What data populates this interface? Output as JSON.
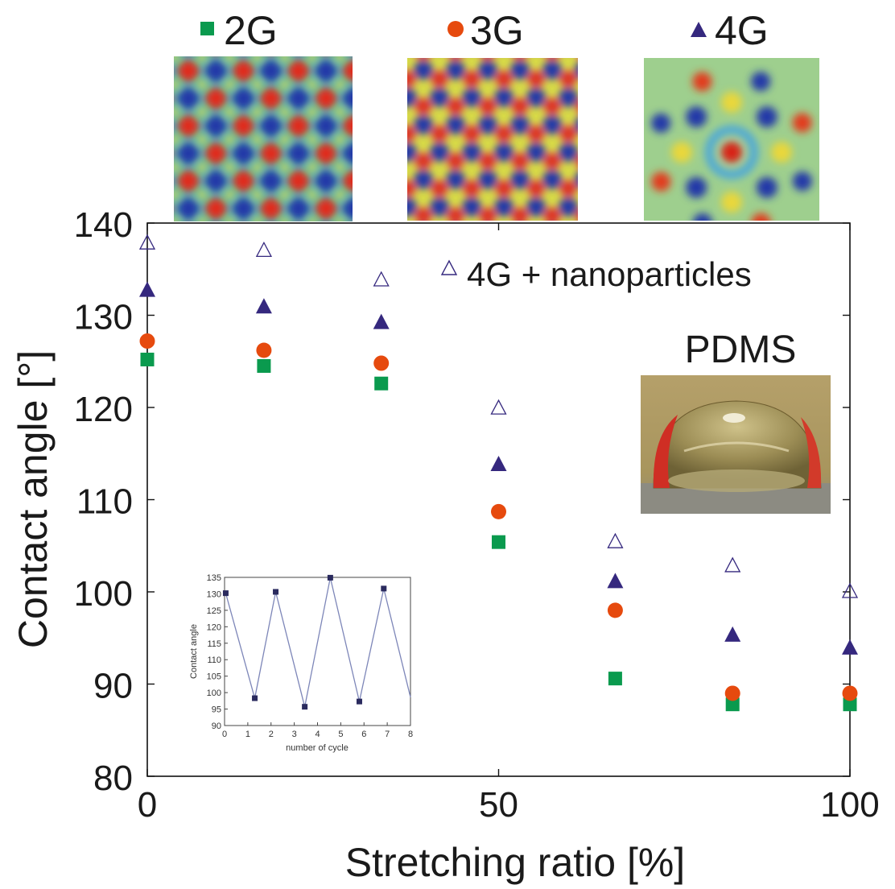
{
  "top_legend": [
    {
      "label": "2G",
      "marker": "square",
      "color": "#0a9a4e"
    },
    {
      "label": "3G",
      "marker": "circle",
      "color": "#e64a0e"
    },
    {
      "label": "4G",
      "marker": "triangle",
      "color": "#35287e"
    }
  ],
  "pattern_images": [
    {
      "name": "pattern-2g",
      "kind": "square-lattice"
    },
    {
      "name": "pattern-3g",
      "kind": "hexagonal-lattice"
    },
    {
      "name": "pattern-4g",
      "kind": "quasicrystal"
    }
  ],
  "photo": {
    "label": "PDMS",
    "subject": "water-droplet-photo"
  },
  "colors": {
    "square": "#0a9a4e",
    "circle": "#e64a0e",
    "triangle": "#35287e",
    "open_triangle": "#35287e",
    "inset_line": "#7d86b8",
    "inset_marker": "#2a2a5e"
  },
  "chart_data": [
    {
      "type": "scatter",
      "xlabel": "Stretching ratio [%]",
      "ylabel": "Contact angle [°]",
      "xlim": [
        0,
        100
      ],
      "ylim": [
        80,
        140
      ],
      "xticks": [
        0,
        50,
        100
      ],
      "yticks": [
        80,
        90,
        100,
        110,
        120,
        130,
        140
      ],
      "grid": false,
      "x": [
        0,
        16.6,
        33.3,
        50,
        66.6,
        83.3,
        100
      ],
      "series": [
        {
          "name": "2G",
          "marker": "square",
          "values": [
            125.2,
            124.5,
            122.6,
            105.4,
            90.6,
            87.8,
            87.8
          ]
        },
        {
          "name": "3G",
          "marker": "circle",
          "values": [
            127.2,
            126.2,
            124.8,
            108.7,
            98.0,
            89.0,
            89.0
          ]
        },
        {
          "name": "4G",
          "marker": "triangle",
          "values": [
            132.7,
            130.9,
            129.2,
            113.8,
            101.1,
            95.3,
            93.9
          ]
        },
        {
          "name": "4G + nanoparticles",
          "marker": "open-triangle",
          "values": [
            137.8,
            137.0,
            133.8,
            119.9,
            105.4,
            102.8,
            100.0
          ]
        }
      ],
      "legend_label": "4G + nanoparticles",
      "legend_position": "top-right"
    },
    {
      "type": "line",
      "inset": true,
      "xlabel": "number of cycle",
      "ylabel": "Contact angle",
      "xlim": [
        0,
        8
      ],
      "ylim": [
        90,
        135
      ],
      "xticks": [
        0,
        1,
        2,
        3,
        4,
        5,
        6,
        7,
        8
      ],
      "yticks": [
        90,
        95,
        100,
        105,
        110,
        115,
        120,
        125,
        130,
        135
      ],
      "x": [
        0.05,
        1.3,
        2.2,
        3.45,
        4.55,
        5.8,
        6.85,
        8.0
      ],
      "values": [
        130.2,
        98.3,
        130.6,
        95.7,
        134.9,
        97.3,
        131.6,
        98.6
      ]
    }
  ]
}
